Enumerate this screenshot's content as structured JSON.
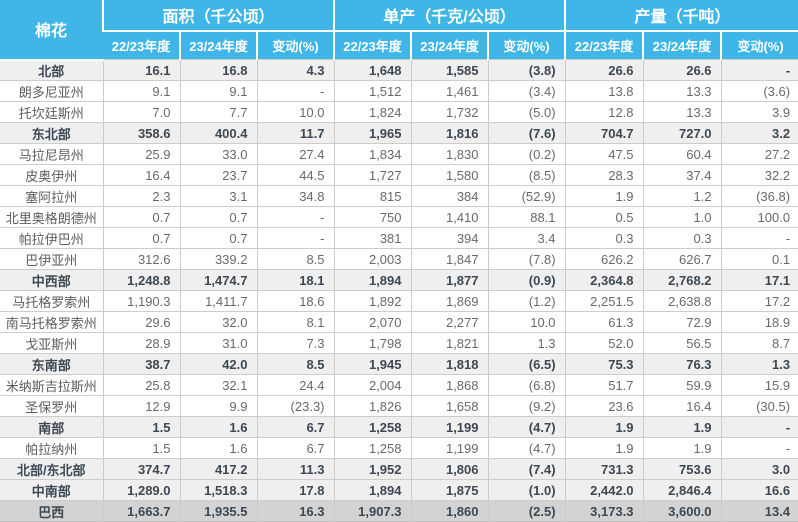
{
  "chart_data": {
    "type": "table",
    "title": "棉花",
    "corner_label": "棉花",
    "column_groups": [
      {
        "label": "面积（千公顷）",
        "sub": [
          "22/23年度",
          "23/24年度",
          "变动(%)"
        ]
      },
      {
        "label": "单产（千克/公顷）",
        "sub": [
          "22/23年度",
          "23/24年度",
          "变动(%)"
        ]
      },
      {
        "label": "产量（千吨）",
        "sub": [
          "22/23年度",
          "23/24年度",
          "变动(%)"
        ]
      }
    ],
    "rows": [
      {
        "label": "北部",
        "type": "section",
        "values": [
          "16.1",
          "16.8",
          "4.3",
          "1,648",
          "1,585",
          "(3.8)",
          "26.6",
          "26.6",
          "-"
        ]
      },
      {
        "label": "朗多尼亚州",
        "type": "normal",
        "values": [
          "9.1",
          "9.1",
          "-",
          "1,512",
          "1,461",
          "(3.4)",
          "13.8",
          "13.3",
          "(3.6)"
        ]
      },
      {
        "label": "托坎廷斯州",
        "type": "normal",
        "values": [
          "7.0",
          "7.7",
          "10.0",
          "1,824",
          "1,732",
          "(5.0)",
          "12.8",
          "13.3",
          "3.9"
        ]
      },
      {
        "label": "东北部",
        "type": "section",
        "values": [
          "358.6",
          "400.4",
          "11.7",
          "1,965",
          "1,816",
          "(7.6)",
          "704.7",
          "727.0",
          "3.2"
        ]
      },
      {
        "label": "马拉尼昂州",
        "type": "normal",
        "values": [
          "25.9",
          "33.0",
          "27.4",
          "1,834",
          "1,830",
          "(0.2)",
          "47.5",
          "60.4",
          "27.2"
        ]
      },
      {
        "label": "皮奥伊州",
        "type": "normal",
        "values": [
          "16.4",
          "23.7",
          "44.5",
          "1,727",
          "1,580",
          "(8.5)",
          "28.3",
          "37.4",
          "32.2"
        ]
      },
      {
        "label": "塞阿拉州",
        "type": "normal",
        "values": [
          "2.3",
          "3.1",
          "34.8",
          "815",
          "384",
          "(52.9)",
          "1.9",
          "1.2",
          "(36.8)"
        ]
      },
      {
        "label": "北里奥格朗德州",
        "type": "normal",
        "values": [
          "0.7",
          "0.7",
          "-",
          "750",
          "1,410",
          "88.1",
          "0.5",
          "1.0",
          "100.0"
        ]
      },
      {
        "label": "帕拉伊巴州",
        "type": "normal",
        "values": [
          "0.7",
          "0.7",
          "-",
          "381",
          "394",
          "3.4",
          "0.3",
          "0.3",
          "-"
        ]
      },
      {
        "label": "巴伊亚州",
        "type": "normal",
        "values": [
          "312.6",
          "339.2",
          "8.5",
          "2,003",
          "1,847",
          "(7.8)",
          "626.2",
          "626.7",
          "0.1"
        ]
      },
      {
        "label": "中西部",
        "type": "section",
        "values": [
          "1,248.8",
          "1,474.7",
          "18.1",
          "1,894",
          "1,877",
          "(0.9)",
          "2,364.8",
          "2,768.2",
          "17.1"
        ]
      },
      {
        "label": "马托格罗索州",
        "type": "normal",
        "values": [
          "1,190.3",
          "1,411.7",
          "18.6",
          "1,892",
          "1,869",
          "(1.2)",
          "2,251.5",
          "2,638.8",
          "17.2"
        ]
      },
      {
        "label": "南马托格罗索州",
        "type": "normal",
        "values": [
          "29.6",
          "32.0",
          "8.1",
          "2,070",
          "2,277",
          "10.0",
          "61.3",
          "72.9",
          "18.9"
        ]
      },
      {
        "label": "戈亚斯州",
        "type": "normal",
        "values": [
          "28.9",
          "31.0",
          "7.3",
          "1,798",
          "1,821",
          "1.3",
          "52.0",
          "56.5",
          "8.7"
        ]
      },
      {
        "label": "东南部",
        "type": "section",
        "values": [
          "38.7",
          "42.0",
          "8.5",
          "1,945",
          "1,818",
          "(6.5)",
          "75.3",
          "76.3",
          "1.3"
        ]
      },
      {
        "label": "米纳斯吉拉斯州",
        "type": "normal",
        "values": [
          "25.8",
          "32.1",
          "24.4",
          "2,004",
          "1,868",
          "(6.8)",
          "51.7",
          "59.9",
          "15.9"
        ]
      },
      {
        "label": "圣保罗州",
        "type": "normal",
        "values": [
          "12.9",
          "9.9",
          "(23.3)",
          "1,826",
          "1,658",
          "(9.2)",
          "23.6",
          "16.4",
          "(30.5)"
        ]
      },
      {
        "label": "南部",
        "type": "section",
        "values": [
          "1.5",
          "1.6",
          "6.7",
          "1,258",
          "1,199",
          "(4.7)",
          "1.9",
          "1.9",
          "-"
        ]
      },
      {
        "label": "帕拉纳州",
        "type": "normal",
        "values": [
          "1.5",
          "1.6",
          "6.7",
          "1,258",
          "1,199",
          "(4.7)",
          "1.9",
          "1.9",
          "-"
        ]
      },
      {
        "label": "北部/东北部",
        "type": "section",
        "values": [
          "374.7",
          "417.2",
          "11.3",
          "1,952",
          "1,806",
          "(7.4)",
          "731.3",
          "753.6",
          "3.0"
        ]
      },
      {
        "label": "中南部",
        "type": "section",
        "values": [
          "1,289.0",
          "1,518.3",
          "17.8",
          "1,894",
          "1,875",
          "(1.0)",
          "2,442.0",
          "2,846.4",
          "16.6"
        ]
      },
      {
        "label": "巴西",
        "type": "total",
        "values": [
          "1,663.7",
          "1,935.5",
          "16.3",
          "1,907.3",
          "1,860",
          "(2.5)",
          "3,173.3",
          "3,600.0",
          "13.4"
        ]
      }
    ],
    "layout": {
      "negative_format": "parentheses",
      "no_change_symbol": "-"
    }
  },
  "colors": {
    "header_bg": "#3fb6e7",
    "header_text": "#ffffff",
    "section_row_bg": "#efefef",
    "total_row_bg": "#d3d3d3",
    "normal_row_bg": "#ffffff",
    "normal_text": "#696969",
    "bold_text": "#3d4852",
    "border": "#cccccc"
  }
}
